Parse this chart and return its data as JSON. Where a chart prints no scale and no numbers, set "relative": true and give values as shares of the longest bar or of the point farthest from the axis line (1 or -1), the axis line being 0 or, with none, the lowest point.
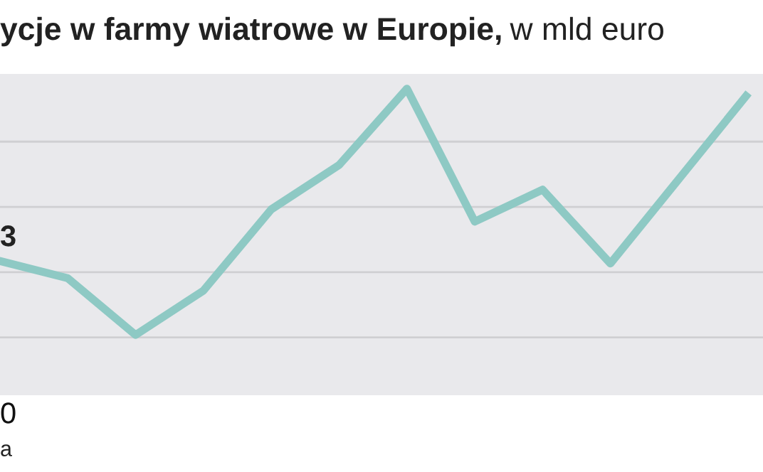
{
  "chart_data": {
    "type": "line",
    "title": "ycje w farmy wiatrowe w Europie,",
    "subtitle": "w mld euro",
    "categories": [
      null,
      null,
      null,
      null,
      null,
      null,
      null,
      null,
      null,
      null,
      null,
      null
    ],
    "relative": true,
    "series": [
      {
        "color": "#8ec9c4",
        "values": [
          0.3,
          0.23,
          0,
          0.18,
          0.51,
          0.69,
          1,
          0.46,
          0.59,
          0.29,
          0.63,
          0.97
        ]
      }
    ],
    "grid": "y",
    "marker": "none",
    "line_style": "solid",
    "annotations": [
      "3",
      "0",
      "a"
    ]
  }
}
